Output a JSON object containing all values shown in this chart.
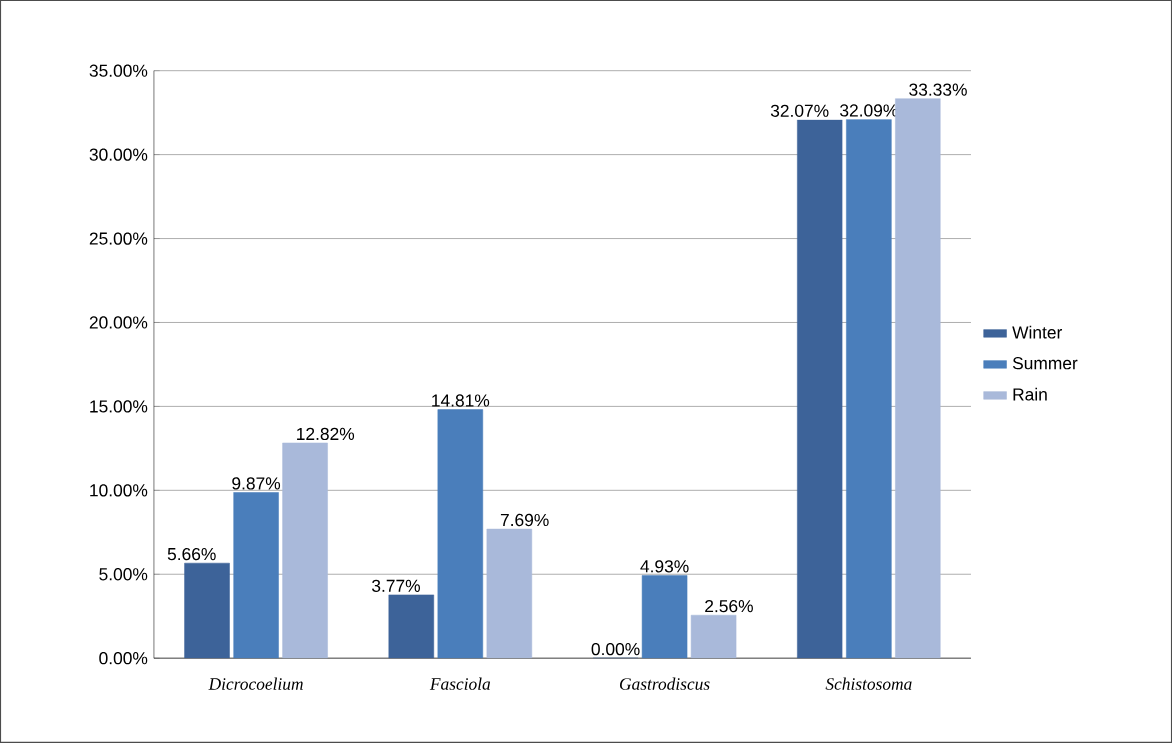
{
  "chart_data": {
    "type": "bar",
    "categories": [
      "Dicrocoelium",
      "Fasciola",
      "Gastrodiscus",
      "Schistosoma"
    ],
    "series": [
      {
        "name": "Winter",
        "color": "#3d6399",
        "values": [
          5.66,
          3.77,
          0.0,
          32.07
        ],
        "value_labels": [
          "5.66%",
          "3.77%",
          "0.00%",
          "32.07%"
        ]
      },
      {
        "name": "Summer",
        "color": "#4a7ebb",
        "values": [
          9.87,
          14.81,
          4.93,
          32.09
        ],
        "value_labels": [
          "9.87%",
          "14.81%",
          "4.93%",
          "32.09%"
        ]
      },
      {
        "name": "Rain",
        "color": "#a9b9da",
        "values": [
          12.82,
          7.69,
          2.56,
          33.33
        ],
        "value_labels": [
          "12.82%",
          "7.69%",
          "2.56%",
          "33.33%"
        ]
      }
    ],
    "ylim": [
      0,
      35
    ],
    "yticks": [
      {
        "value": 0,
        "label": "0.00%"
      },
      {
        "value": 5,
        "label": "5.00%"
      },
      {
        "value": 10,
        "label": "10.00%"
      },
      {
        "value": 15,
        "label": "15.00%"
      },
      {
        "value": 20,
        "label": "20.00%"
      },
      {
        "value": 25,
        "label": "25.00%"
      },
      {
        "value": 30,
        "label": "30.00%"
      },
      {
        "value": 35,
        "label": "35.00%"
      }
    ],
    "grid": "y",
    "legend": "right"
  }
}
